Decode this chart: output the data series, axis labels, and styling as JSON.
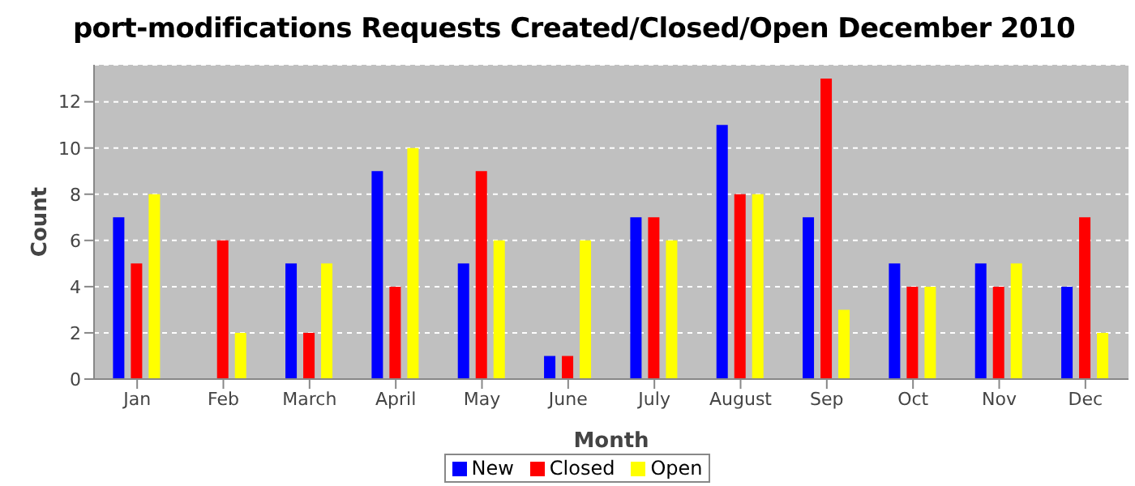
{
  "chart_data": {
    "type": "bar",
    "title": "port-modifications Requests Created/Closed/Open December 2010",
    "xlabel": "Month",
    "ylabel": "Count",
    "categories": [
      "Jan",
      "Feb",
      "March",
      "April",
      "May",
      "June",
      "July",
      "August",
      "Sep",
      "Oct",
      "Nov",
      "Dec"
    ],
    "series": [
      {
        "name": "New",
        "color": "#0000ff",
        "values": [
          7,
          0,
          5,
          9,
          5,
          1,
          7,
          11,
          7,
          5,
          5,
          4
        ]
      },
      {
        "name": "Closed",
        "color": "#ff0000",
        "values": [
          5,
          6,
          2,
          4,
          9,
          1,
          7,
          8,
          13,
          4,
          4,
          7
        ]
      },
      {
        "name": "Open",
        "color": "#ffff00",
        "values": [
          8,
          2,
          5,
          10,
          6,
          6,
          6,
          8,
          3,
          4,
          5,
          2
        ]
      }
    ],
    "ylim": [
      0,
      13.6
    ],
    "yticks": [
      0,
      2,
      4,
      6,
      8,
      10,
      12
    ],
    "grid": "y",
    "legend": "bottom"
  }
}
